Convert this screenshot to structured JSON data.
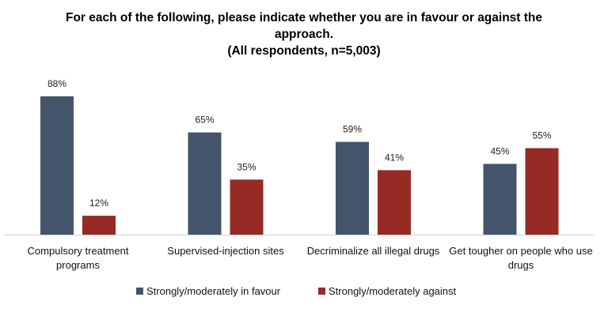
{
  "chart_data": {
    "type": "bar",
    "title": "For each of the following, please indicate whether you are in favour or against the approach.",
    "subtitle": "(All respondents, n=5,003)",
    "categories": [
      "Compulsory treatment programs",
      "Supervised-injection sites",
      "Decriminalize all illegal drugs",
      "Get tougher on people who use drugs"
    ],
    "series": [
      {
        "name": "Strongly/moderately in favour",
        "color": "#44546a",
        "values": [
          88,
          65,
          59,
          45
        ],
        "value_labels": [
          "88%",
          "65%",
          "59%",
          "45%"
        ]
      },
      {
        "name": "Strongly/moderately against",
        "color": "#962a24",
        "values": [
          12,
          35,
          41,
          55
        ],
        "value_labels": [
          "12%",
          "35%",
          "41%",
          "55%"
        ]
      }
    ]
  }
}
